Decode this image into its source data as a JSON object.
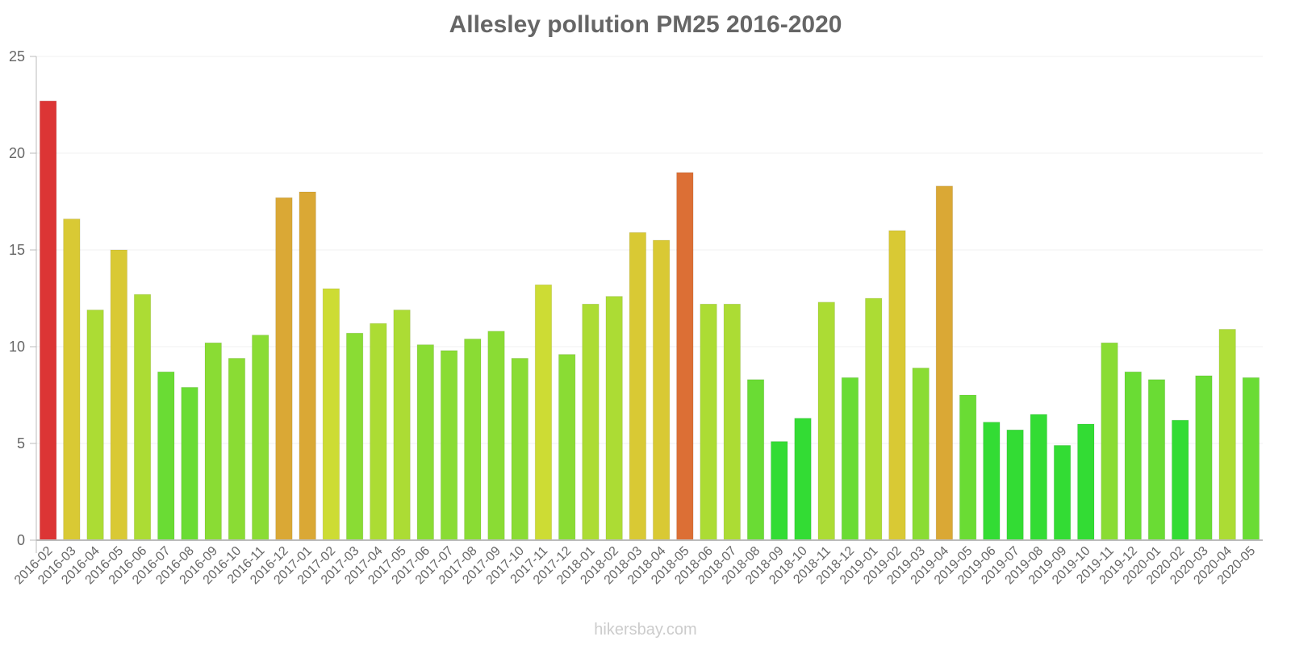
{
  "chart_data": {
    "type": "bar",
    "title": "Allesley pollution PM25 2016-2020",
    "xlabel": "",
    "ylabel": "",
    "ylim": [
      0,
      25
    ],
    "yticks": [
      0,
      5,
      10,
      15,
      20,
      25
    ],
    "grid": true,
    "legend": null,
    "categories": [
      "2016-02",
      "2016-03",
      "2016-04",
      "2016-05",
      "2016-06",
      "2016-07",
      "2016-08",
      "2016-09",
      "2016-10",
      "2016-11",
      "2016-12",
      "2017-01",
      "2017-02",
      "2017-03",
      "2017-04",
      "2017-05",
      "2017-06",
      "2017-07",
      "2017-08",
      "2017-09",
      "2017-10",
      "2017-11",
      "2017-12",
      "2018-01",
      "2018-02",
      "2018-03",
      "2018-04",
      "2018-05",
      "2018-06",
      "2018-07",
      "2018-08",
      "2018-09",
      "2018-10",
      "2018-11",
      "2018-12",
      "2019-01",
      "2019-02",
      "2019-03",
      "2019-04",
      "2019-05",
      "2019-06",
      "2019-07",
      "2019-08",
      "2019-09",
      "2019-10",
      "2019-11",
      "2019-12",
      "2020-01",
      "2020-02",
      "2020-03",
      "2020-04",
      "2020-05"
    ],
    "values": [
      22.7,
      16.6,
      11.9,
      15.0,
      12.7,
      8.7,
      7.9,
      10.2,
      9.4,
      10.6,
      17.7,
      18.0,
      13.0,
      10.7,
      11.2,
      11.9,
      10.1,
      9.8,
      10.4,
      10.8,
      9.4,
      13.2,
      9.6,
      12.2,
      12.6,
      15.9,
      15.5,
      19.0,
      12.2,
      12.2,
      8.3,
      5.1,
      6.3,
      12.3,
      8.4,
      12.5,
      16.0,
      8.9,
      18.3,
      7.5,
      6.1,
      5.7,
      6.5,
      4.9,
      6.0,
      10.2,
      8.7,
      8.3,
      6.2,
      8.5,
      10.9,
      8.4
    ],
    "colors": [
      "#dc3535",
      "#d9c934",
      "#acdc34",
      "#d9c934",
      "#acdc34",
      "#6adc34",
      "#6adc34",
      "#8adc34",
      "#8adc34",
      "#8adc34",
      "#daa835",
      "#daa835",
      "#cddc34",
      "#8adc34",
      "#acdc34",
      "#acdc34",
      "#8adc34",
      "#8adc34",
      "#8adc34",
      "#8adc34",
      "#8adc34",
      "#cddc34",
      "#8adc34",
      "#acdc34",
      "#acdc34",
      "#d9c934",
      "#d9c934",
      "#dc6f35",
      "#acdc34",
      "#acdc34",
      "#6adc34",
      "#33dc34",
      "#33dc34",
      "#acdc34",
      "#6adc34",
      "#acdc34",
      "#d9c934",
      "#8adc34",
      "#daa835",
      "#6adc34",
      "#33dc34",
      "#33dc34",
      "#33dc34",
      "#33dc34",
      "#33dc34",
      "#8adc34",
      "#6adc34",
      "#6adc34",
      "#33dc34",
      "#6adc34",
      "#acdc34",
      "#6adc34"
    ]
  },
  "footer": {
    "credit": "hikersbay.com"
  }
}
